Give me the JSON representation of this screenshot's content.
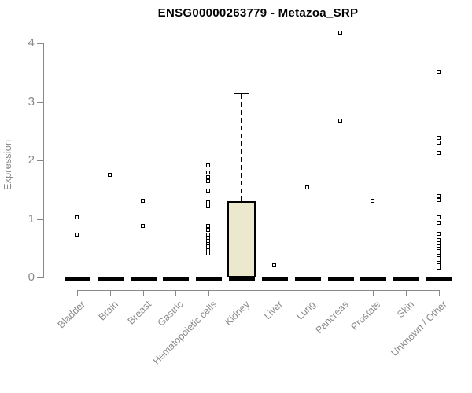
{
  "title": "ENSG00000263779 - Metazoa_SRP",
  "chart_data": {
    "type": "boxplot",
    "title": "ENSG00000263779 - Metazoa_SRP",
    "ylabel": "Expression",
    "xlabel": "",
    "ylim": [
      0,
      4.3
    ],
    "yticks": [
      0,
      1,
      2,
      3,
      4
    ],
    "grid": false,
    "legend": null,
    "categories": [
      "Bladder",
      "Brain",
      "Breast",
      "Gastric",
      "Hematopoietic cells",
      "Kidney",
      "Liver",
      "Lung",
      "Pancreas",
      "Prostate",
      "Skin",
      "Unknown / Other"
    ],
    "series": [
      {
        "category": "Bladder",
        "median": 0,
        "q1": 0,
        "q3": 0,
        "points": [
          1.02,
          0.72
        ]
      },
      {
        "category": "Brain",
        "median": 0,
        "q1": 0,
        "q3": 0,
        "points": [
          1.75
        ]
      },
      {
        "category": "Breast",
        "median": 0,
        "q1": 0,
        "q3": 0,
        "points": [
          1.3,
          0.87
        ]
      },
      {
        "category": "Gastric",
        "median": 0,
        "q1": 0,
        "q3": 0,
        "points": []
      },
      {
        "category": "Hematopoietic cells",
        "median": 0,
        "q1": 0,
        "q3": 0,
        "points": [
          1.9,
          1.78,
          1.71,
          1.64,
          1.48,
          1.28,
          1.22,
          0.87,
          0.81,
          0.72,
          0.67,
          0.62,
          0.57,
          0.53,
          0.45,
          0.4
        ]
      },
      {
        "category": "Kidney",
        "median": 0,
        "q1": 0,
        "q3": 1.3,
        "whisker_high": 3.15,
        "points": []
      },
      {
        "category": "Liver",
        "median": 0,
        "q1": 0,
        "q3": 0,
        "points": [
          0.2
        ]
      },
      {
        "category": "Lung",
        "median": 0,
        "q1": 0,
        "q3": 0,
        "points": [
          1.53
        ]
      },
      {
        "category": "Pancreas",
        "median": 0,
        "q1": 0,
        "q3": 0,
        "points": [
          4.17,
          2.67
        ]
      },
      {
        "category": "Prostate",
        "median": 0,
        "q1": 0,
        "q3": 0,
        "points": [
          1.3
        ]
      },
      {
        "category": "Skin",
        "median": 0,
        "q1": 0,
        "q3": 0,
        "points": []
      },
      {
        "category": "Unknown / Other",
        "median": 0,
        "q1": 0,
        "q3": 0,
        "points": [
          3.5,
          2.37,
          2.29,
          2.12,
          1.38,
          1.32,
          1.02,
          0.92,
          0.74,
          0.63,
          0.58,
          0.53,
          0.48,
          0.44,
          0.4,
          0.36,
          0.32,
          0.28,
          0.24,
          0.2,
          0.16
        ]
      }
    ]
  },
  "colors": {
    "box_fill": "#ece8cd",
    "box_border": "#000000",
    "axis": "#888888",
    "tick_text": "#8a8a8a",
    "title_text": "#000000",
    "point": "#000000"
  }
}
